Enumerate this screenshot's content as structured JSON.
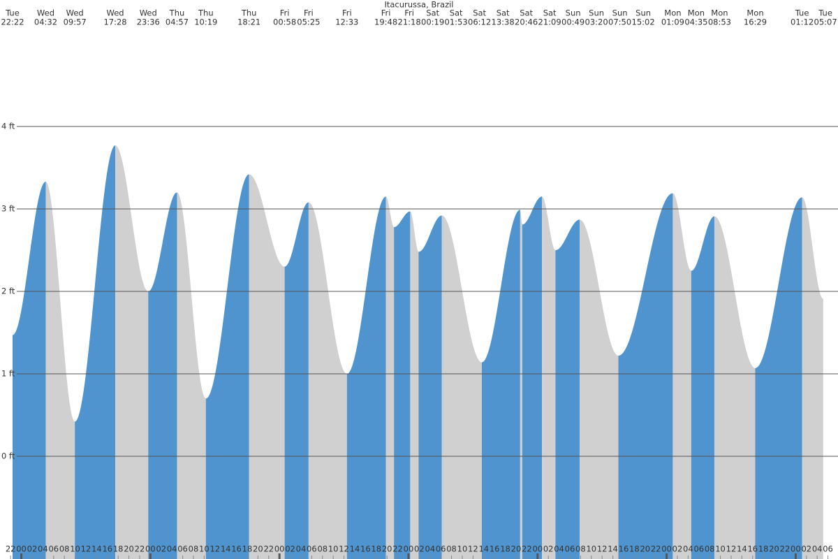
{
  "chart_data": {
    "type": "tide",
    "title": "Itacurussa, Brazil",
    "events": [
      {
        "day": "Tue",
        "time": "22:22",
        "height": 1.47
      },
      {
        "day": "Wed",
        "time": "04:32",
        "height": 3.33
      },
      {
        "day": "Wed",
        "time": "09:57",
        "height": 0.42
      },
      {
        "day": "Wed",
        "time": "17:28",
        "height": 3.77
      },
      {
        "day": "Wed",
        "time": "23:36",
        "height": 2.0
      },
      {
        "day": "Thu",
        "time": "04:57",
        "height": 3.2
      },
      {
        "day": "Thu",
        "time": "10:19",
        "height": 0.7
      },
      {
        "day": "Thu",
        "time": "18:21",
        "height": 3.42
      },
      {
        "day": "Fri",
        "time": "00:58",
        "height": 2.3
      },
      {
        "day": "Fri",
        "time": "05:25",
        "height": 3.08
      },
      {
        "day": "Fri",
        "time": "12:33",
        "height": 1.0
      },
      {
        "day": "Fri",
        "time": "19:48",
        "height": 3.15
      },
      {
        "day": "Fri",
        "time": "21:18",
        "height": 2.78
      },
      {
        "day": "Sat",
        "time": "00:19",
        "height": 2.97
      },
      {
        "day": "Sat",
        "time": "01:53",
        "height": 2.48
      },
      {
        "day": "Sat",
        "time": "06:12",
        "height": 2.92
      },
      {
        "day": "Sat",
        "time": "13:38",
        "height": 1.14
      },
      {
        "day": "Sat",
        "time": "20:46",
        "height": 2.99
      },
      {
        "day": "Sat",
        "time": "21:09",
        "height": 2.81
      },
      {
        "day": "Sun",
        "time": "00:49",
        "height": 3.15
      },
      {
        "day": "Sun",
        "time": "03:20",
        "height": 2.5
      },
      {
        "day": "Sun",
        "time": "07:50",
        "height": 2.87
      },
      {
        "day": "Sun",
        "time": "15:02",
        "height": 1.22
      },
      {
        "day": "Mon",
        "time": "01:09",
        "height": 3.19
      },
      {
        "day": "Mon",
        "time": "04:35",
        "height": 2.25
      },
      {
        "day": "Mon",
        "time": "08:53",
        "height": 2.91
      },
      {
        "day": "Mon",
        "time": "16:29",
        "height": 1.07
      },
      {
        "day": "Tue",
        "time": "01:12",
        "height": 3.14
      },
      {
        "day": "Tue",
        "time": "05:07",
        "height": 1.91
      }
    ],
    "ylim": [
      -1.246,
      5.534
    ],
    "yticks": [
      {
        "value": 0,
        "label": "0 ft"
      },
      {
        "value": 1,
        "label": "1 ft"
      },
      {
        "value": 2,
        "label": "2 ft"
      },
      {
        "value": 3,
        "label": "3 ft"
      },
      {
        "value": 4,
        "label": "4 ft"
      }
    ],
    "xticks": [
      "22",
      "00",
      "02",
      "04",
      "06",
      "08",
      "10",
      "12",
      "14",
      "16",
      "18",
      "20",
      "22",
      "00",
      "02",
      "04",
      "06",
      "08",
      "10",
      "12",
      "14",
      "16",
      "18",
      "20",
      "22",
      "00",
      "02",
      "04",
      "06",
      "08",
      "10",
      "12",
      "14",
      "16",
      "18",
      "20",
      "22",
      "00",
      "02",
      "04",
      "06",
      "08",
      "10",
      "12",
      "14",
      "16",
      "18",
      "20",
      "22",
      "00",
      "02",
      "04",
      "06",
      "08",
      "10",
      "12",
      "14",
      "16",
      "18",
      "20",
      "22",
      "00",
      "02",
      "04",
      "06",
      "08",
      "10",
      "12",
      "14",
      "16",
      "18",
      "20",
      "22",
      "00",
      "02",
      "04",
      "06"
    ],
    "colors": {
      "rising": "#4f94cf",
      "falling": "#d0d0d0",
      "grid": "#555555"
    }
  }
}
